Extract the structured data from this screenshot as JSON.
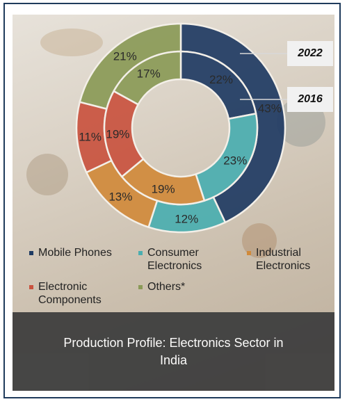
{
  "chart_data": {
    "type": "pie",
    "categories": [
      "Mobile Phones",
      "Consumer Electronics",
      "Industrial Electronics",
      "Electronic Components",
      "Others*"
    ],
    "series": [
      {
        "name": "2022",
        "values": [
          43,
          12,
          13,
          11,
          21
        ],
        "labels": [
          "43%",
          "12%",
          "13%",
          "11%",
          "21%"
        ]
      },
      {
        "name": "2016",
        "values": [
          22,
          23,
          19,
          19,
          17
        ],
        "labels": [
          "22%",
          "23%",
          "19%",
          "19%",
          "17%"
        ]
      }
    ],
    "colors": [
      "#1f3b63",
      "#4aaeb0",
      "#d08a3b",
      "#c9533f",
      "#8a9a57"
    ],
    "title": "Production Profile: Electronics Sector in India"
  },
  "legend": {
    "items": [
      {
        "label": "Mobile Phones"
      },
      {
        "label": "Consumer\nElectronics"
      },
      {
        "label": "Industrial\nElectronics"
      },
      {
        "label": "Electronic\nComponents"
      },
      {
        "label": "Others*"
      }
    ]
  },
  "year_labels": {
    "outer": "2022",
    "inner": "2016"
  },
  "caption": "Production Profile: Electronics Sector in India"
}
